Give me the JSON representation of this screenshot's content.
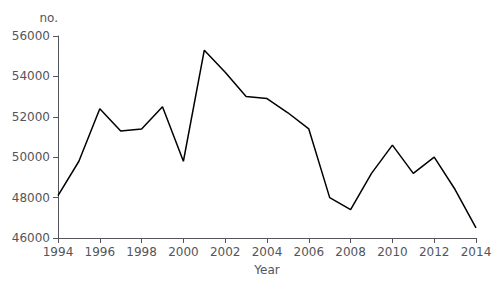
{
  "chart_data": {
    "type": "line",
    "x": [
      1994,
      1995,
      1996,
      1997,
      1998,
      1999,
      2000,
      2001,
      2002,
      2003,
      2004,
      2005,
      2006,
      2007,
      2008,
      2009,
      2010,
      2011,
      2012,
      2013,
      2014
    ],
    "values": [
      48100,
      49800,
      52400,
      51300,
      51400,
      52500,
      49800,
      55300,
      54200,
      53000,
      52900,
      52200,
      51400,
      48000,
      47400,
      49200,
      50600,
      49200,
      50000,
      48400,
      46500
    ],
    "xlabel": "Year",
    "ylabel": "no.",
    "xlim": [
      1994,
      2014
    ],
    "ylim": [
      46000,
      56000
    ],
    "xticks": [
      1994,
      1996,
      1998,
      2000,
      2002,
      2004,
      2006,
      2008,
      2010,
      2012,
      2014
    ],
    "yticks": [
      46000,
      48000,
      50000,
      52000,
      54000,
      56000
    ],
    "color": "#000000",
    "grid": false
  }
}
